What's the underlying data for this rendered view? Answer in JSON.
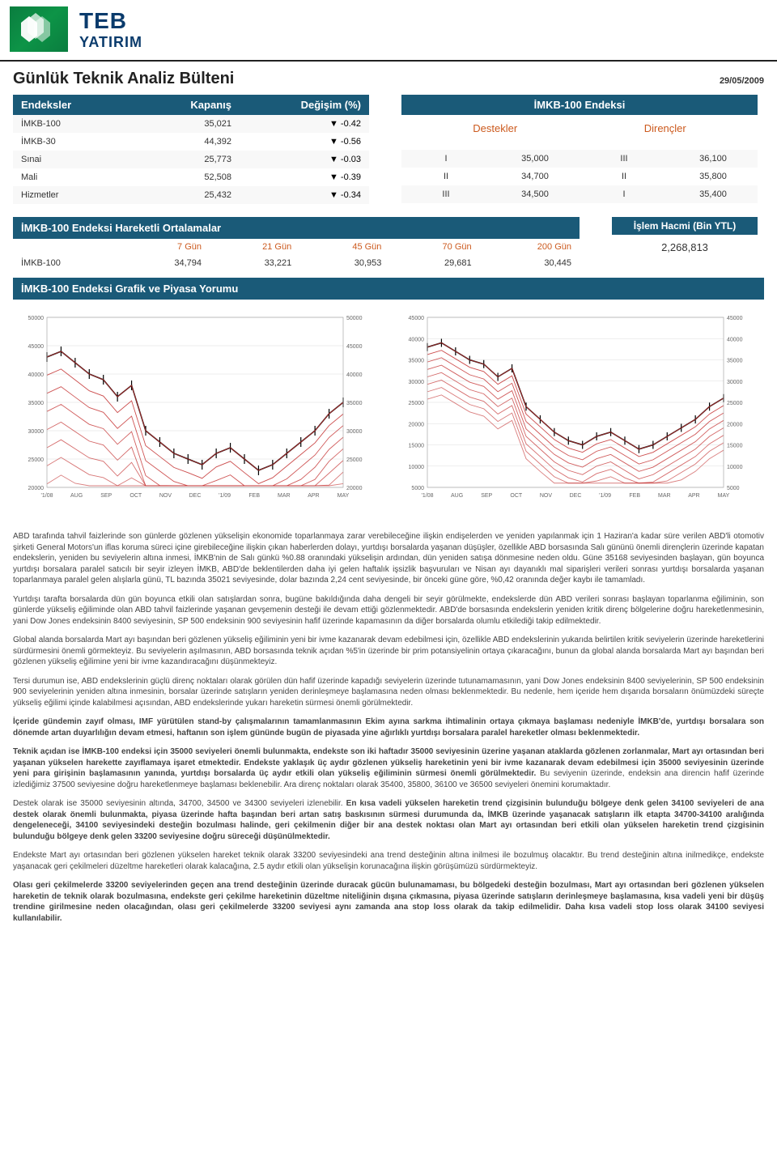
{
  "logo": {
    "teb": "TEB",
    "yatirim": "YATIRIM"
  },
  "title": "Günlük Teknik Analiz Bülteni",
  "date": "29/05/2009",
  "colors": {
    "header_bg": "#1a5a78",
    "header_fg": "#ffffff",
    "accent": "#cc5a1e",
    "logo_green": "#0d9447",
    "logo_navy": "#0a3b6c"
  },
  "endeksler": {
    "headers": [
      "Endeksler",
      "Kapanış",
      "Değişim (%)"
    ],
    "rows": [
      {
        "name": "İMKB-100",
        "close": "35,021",
        "arrow": "▼",
        "chg": "-0.42"
      },
      {
        "name": "İMKB-30",
        "close": "44,392",
        "arrow": "▼",
        "chg": "-0.56"
      },
      {
        "name": "Sınai",
        "close": "25,773",
        "arrow": "▼",
        "chg": "-0.03"
      },
      {
        "name": "Mali",
        "close": "52,508",
        "arrow": "▼",
        "chg": "-0.39"
      },
      {
        "name": "Hizmetler",
        "close": "25,432",
        "arrow": "▼",
        "chg": "-0.34"
      }
    ]
  },
  "imkb100_levels": {
    "title": "İMKB-100 Endeksi",
    "sub": [
      "Destekler",
      "Dirençler"
    ],
    "rows": [
      {
        "r1": "",
        "v1": "",
        "r2": "",
        "v2": ""
      },
      {
        "r1": "I",
        "v1": "35,000",
        "r2": "III",
        "v2": "36,100"
      },
      {
        "r1": "II",
        "v1": "34,700",
        "r2": "II",
        "v2": "35,800"
      },
      {
        "r1": "III",
        "v1": "34,500",
        "r2": "I",
        "v2": "35,400"
      }
    ]
  },
  "ma": {
    "title": "İMKB-100 Endeksi Hareketli Ortalamalar",
    "headers": [
      "",
      "7 Gün",
      "21 Gün",
      "45 Gün",
      "70 Gün",
      "200 Gün"
    ],
    "row": [
      "İMKB-100",
      "34,794",
      "33,221",
      "30,953",
      "29,681",
      "30,445"
    ]
  },
  "volume": {
    "title": "İşlem Hacmi (Bin YTL)",
    "value": "2,268,813"
  },
  "chart_section_title": "İMKB-100 Endeksi Grafik ve Piyasa Yorumu",
  "chart1": {
    "y_ticks": [
      "20000",
      "25000",
      "30000",
      "35000",
      "40000",
      "45000",
      "50000"
    ],
    "y_ticks_r": [
      "20000",
      "25000",
      "30000",
      "35000",
      "40000",
      "45000",
      "50000"
    ],
    "x_ticks": [
      "'1/08",
      "AUG",
      "SEP",
      "OCT",
      "NOV",
      "DEC",
      "'1/09",
      "FEB",
      "MAR",
      "APR",
      "MAY"
    ]
  },
  "chart2": {
    "y_ticks": [
      "5000",
      "10000",
      "15000",
      "20000",
      "25000",
      "30000",
      "35000",
      "40000",
      "45000"
    ],
    "y_ticks_l": [
      "5000",
      "10000",
      "15000",
      "20000",
      "25000",
      "30000",
      "35000",
      "40000",
      "45000"
    ],
    "x_ticks": [
      "'1/08",
      "AUG",
      "SEP",
      "OCT",
      "NOV",
      "DEC",
      "'1/09",
      "FEB",
      "MAR",
      "APR",
      "MAY"
    ]
  },
  "paragraphs": [
    "ABD tarafında tahvil faizlerinde son günlerde gözlenen yükselişin ekonomide toparlanmaya zarar verebileceğine ilişkin endişelerden ve yeniden yapılanmak için 1 Haziran'a kadar süre verilen ABD'li otomotiv şirketi General Motors'un iflas koruma süreci içine girebileceğine ilişkin çıkan haberlerden dolayı, yurtdışı borsalarda yaşanan düşüşler, özellikle ABD borsasında Salı gününü önemli dirençlerin üzerinde kapatan endekslerin, yeniden bu seviyelerin altına inmesi, İMKB'nin de Salı günkü %0.88 oranındaki yükselişin ardından, dün yeniden satışa dönmesine neden oldu. Güne 35168 seviyesinden başlayan, gün boyunca yurtdışı borsalara paralel satıcılı bir seyir izleyen İMKB, ABD'de beklentilerden daha iyi gelen haftalık işsizlik başvuruları ve Nisan ayı dayanıklı mal siparişleri verileri sonrası yurtdışı borsalarda yaşanan toparlanmaya paralel gelen alışlarla günü, TL bazında 35021 seviyesinde, dolar bazında 2,24 cent seviyesinde, bir önceki güne göre, %0,42 oranında değer kaybı ile tamamladı.",
    "Yurtdışı tarafta borsalarda dün gün boyunca etkili olan satışlardan sonra, bugüne bakıldığında daha dengeli bir seyir görülmekte, endekslerde dün ABD verileri sonrası başlayan toparlanma eğiliminin, son günlerde yükseliş eğiliminde olan ABD tahvil faizlerinde yaşanan gevşemenin desteği ile devam ettiği gözlenmektedir. ABD'de borsasında endekslerin yeniden kritik direnç bölgelerine doğru hareketlenmesinin, yani Dow Jones endeksinin 8400 seviyesinin, SP 500 endeksinin 900 seviyesinin hafif üzerinde kapamasının da diğer borsalarda olumlu etkilediği takip edilmektedir.",
    "Global alanda borsalarda Mart ayı başından beri gözlenen yükseliş eğiliminin yeni bir ivme kazanarak devam edebilmesi için, özellikle ABD endekslerinin yukarıda belirtilen kritik seviyelerin üzerinde hareketlerini sürdürmesini önemli görmekteyiz. Bu seviyelerin aşılmasının, ABD borsasında teknik açıdan %5'in üzerinde bir prim potansiyelinin ortaya çıkaracağını, bunun da global alanda borsalarda Mart ayı başından beri gözlenen yükseliş eğilimine yeni bir ivme kazandıracağını düşünmekteyiz.",
    "Tersi durumun ise, ABD endekslerinin güçlü direnç noktaları olarak görülen dün hafif üzerinde kapadığı seviyelerin üzerinde tutunamamasının, yani Dow Jones endeksinin 8400 seviyelerinin, SP 500 endeksinin 900 seviyelerinin yeniden altına inmesinin, borsalar üzerinde satışların yeniden derinleşmeye başlamasına neden olması beklenmektedir. Bu nedenle, hem içeride hem dışarıda borsaların önümüzdeki süreçte yükseliş eğilimi içinde kalabilmesi açısından, ABD endekslerinde yukarı hareketin sürmesi önemli görülmektedir."
  ],
  "bold_paragraphs": [
    "İçeride gündemin zayıf olması, IMF yürütülen stand-by çalışmalarının tamamlanmasının Ekim ayına sarkma ihtimalinin ortaya çıkmaya başlaması nedeniyle İMKB'de, yurtdışı borsalara son dönemde artan duyarlılığın devam etmesi, haftanın son işlem gününde bugün de piyasada yine ağırlıklı yurtdışı borsalara paralel hareketler olması beklenmektedir."
  ],
  "mixed_p1": {
    "a": "Teknik açıdan ise İMKB-100 endeksi için 35000 seviyeleri önemli bulunmakta, endekste son iki haftadır 35000 seviyesinin üzerine yaşanan ataklarda gözlenen zorlanmalar, Mart ayı ortasından beri yaşanan yükselen harekette zayıflamaya işaret etmektedir. Endekste yaklaşık üç aydır gözlenen yükseliş hareketinin yeni bir ivme kazanarak devam edebilmesi için 35000 seviyesinin üzerinde yeni para girişinin başlamasının yanında, yurtdışı borsalarda üç aydır etkili olan yükseliş eğiliminin sürmesi önemli görülmektedir.",
    "b": " Bu seviyenin üzerinde, endeksin ana direncin hafif üzerinde izlediğimiz 37500 seviyesine doğru hareketlenmeye başlaması beklenebilir.",
    "c": " Ara direnç noktaları olarak 35400, 35800, 36100 ve 36500 seviyeleri önemini korumaktadır."
  },
  "mixed_p2": {
    "a": "Destek olarak ise 35000 seviyesinin altında, 34700, 34500 ve 34300 seviyeleri izlenebilir.",
    "b": " En kısa vadeli yükselen hareketin trend çizgisinin bulunduğu bölgeye denk gelen 34100 seviyeleri de ana destek olarak önemli bulunmakta, piyasa üzerinde hafta başından beri artan satış baskısının sürmesi durumunda da, İMKB üzerinde yaşanacak satışların ilk etapta 34700-34100 aralığında dengeleneceği, 34100 seviyesindeki desteğin bozulması halinde, geri çekilmenin diğer bir ana destek noktası olan Mart ayı ortasından beri etkili olan yükselen hareketin trend çizgisinin bulunduğu bölgeye denk gelen 33200 seviyesine doğru süreceği düşünülmektedir."
  },
  "mixed_p3": {
    "a": "Endekste Mart ayı ortasından beri gözlenen yükselen hareket teknik olarak 33200 seviyesindeki ana trend desteğinin altına inilmesi ile bozulmuş olacaktır.",
    "b": " Bu trend desteğinin altına inilmedikçe, endekste yaşanacak geri çekilmeleri düzeltme hareketleri olarak kalacağına, 2.5 aydır etkili olan yükselişin korunacağına ilişkin görüşümüzü sürdürmekteyiz."
  },
  "final_bold": "Olası geri çekilmelerde 33200 seviyelerinden geçen ana trend desteğinin üzerinde duracak gücün bulunamaması, bu bölgedeki desteğin bozulması, Mart ayı ortasından beri gözlenen yükselen hareketin de teknik olarak bozulmasına, endekste geri çekilme hareketinin düzeltme niteliğinin dışına çıkmasına, piyasa üzerinde satışların derinleşmeye başlamasına, kısa vadeli yeni bir düşüş trendine girilmesine neden olacağından, olası geri çekilmelerde 33200 seviyesi aynı zamanda ana stop loss olarak da takip edilmelidir. Daha kısa vadeli stop loss olarak 34100 seviyesi kullanılabilir."
}
